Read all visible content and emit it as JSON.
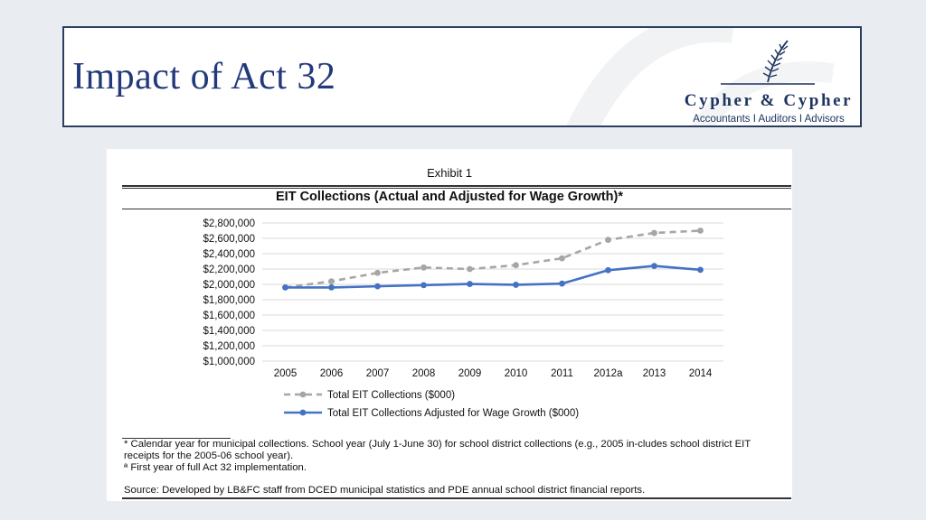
{
  "slide": {
    "title": "Impact of Act 32"
  },
  "logo": {
    "name": "Cypher & Cypher",
    "tagline": "Accountants  I  Auditors  I  Advisors"
  },
  "exhibit": {
    "label": "Exhibit 1",
    "footnotes": [
      "* Calendar year for municipal collections.  School year (July 1-June 30) for school district collections (e.g., 2005 in-cludes school district EIT receipts for the 2005-06 school year).",
      "ª First year of full Act 32 implementation."
    ],
    "source": "Source:  Developed by LB&FC staff from DCED municipal statistics and PDE annual school district financial reports."
  },
  "colors": {
    "title": "#23397a",
    "series_total": "#a6a6a6",
    "series_adjusted": "#4472c4",
    "grid": "#d9d9d9"
  },
  "chart_data": {
    "type": "line",
    "title": "EIT Collections (Actual and Adjusted for Wage Growth)*",
    "xlabel": "",
    "ylabel": "",
    "categories": [
      "2005",
      "2006",
      "2007",
      "2008",
      "2009",
      "2010",
      "2011",
      "2012a",
      "2013",
      "2014"
    ],
    "ylim": [
      1000000,
      2800000
    ],
    "yticks": [
      1000000,
      1200000,
      1400000,
      1600000,
      1800000,
      2000000,
      2200000,
      2400000,
      2600000,
      2800000
    ],
    "ytick_labels": [
      "$1,000,000",
      "$1,200,000",
      "$1,400,000",
      "$1,600,000",
      "$1,800,000",
      "$2,000,000",
      "$2,200,000",
      "$2,400,000",
      "$2,600,000",
      "$2,800,000"
    ],
    "grid": true,
    "legend_position": "bottom",
    "series": [
      {
        "name": "Total EIT Collections ($000)",
        "style": "dashed",
        "color": "#a6a6a6",
        "values": [
          1960000,
          2040000,
          2150000,
          2220000,
          2200000,
          2250000,
          2340000,
          2580000,
          2670000,
          2700000
        ]
      },
      {
        "name": "Total EIT Collections Adjusted for Wage Growth ($000)",
        "style": "solid",
        "color": "#4472c4",
        "values": [
          1960000,
          1960000,
          1975000,
          1990000,
          2005000,
          1995000,
          2010000,
          2185000,
          2240000,
          2190000
        ]
      }
    ]
  }
}
